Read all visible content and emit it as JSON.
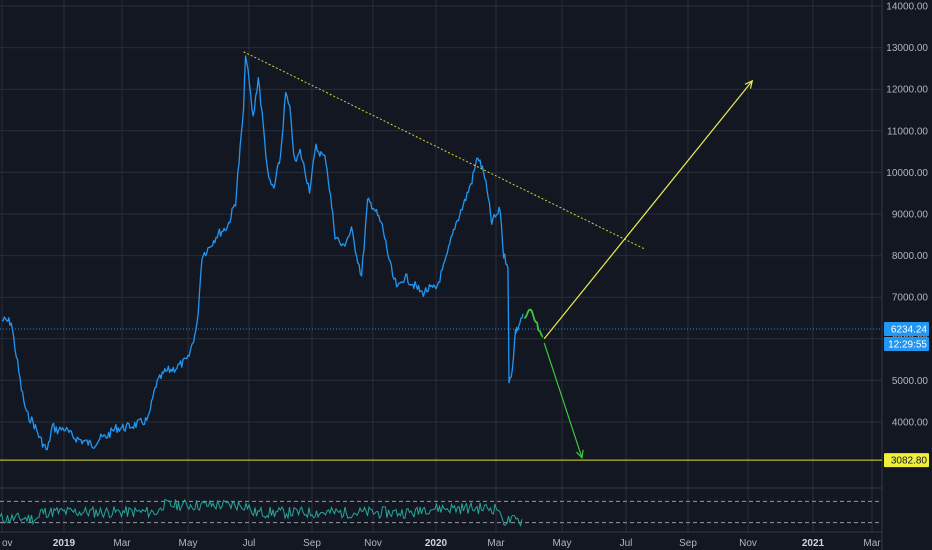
{
  "colors": {
    "background": "#131722",
    "grid": "#2a2e39",
    "price_line": "#2196f3",
    "rsi_line": "#26a69a",
    "trendline": "#d4d435",
    "bull_arrow": "#ecec50",
    "bear_arrow": "#3cc83c",
    "support_line": "#d8e02a",
    "support_label_bg": "#f0f03a",
    "price_label_bg": "#2196f3",
    "axis_text": "#b2b5be"
  },
  "price_label": {
    "value": "6234.24",
    "countdown": "12:29:55"
  },
  "support_label": {
    "value": "3082.80"
  },
  "chart_data": {
    "type": "line",
    "ylim": [
      2700,
      14100
    ],
    "y_ticks": [
      "14000.00",
      "13000.00",
      "12000.00",
      "11000.00",
      "10000.00",
      "9000.00",
      "8000.00",
      "7000.00",
      "6000.00",
      "5000.00",
      "4000.00"
    ],
    "x_ticks": [
      "ov",
      "2019",
      "Mar",
      "May",
      "Jul",
      "Sep",
      "Nov",
      "2020",
      "Mar",
      "May",
      "Jul",
      "Sep",
      "Nov",
      "2021",
      "Mar"
    ],
    "x_ticks_bold": [
      "2019",
      "2020",
      "2021"
    ],
    "current_price": 6234.24,
    "support_level": 3082.8,
    "series": [
      {
        "x": [
          "2018-11-01",
          "2018-11-10",
          "2018-11-15",
          "2018-11-20",
          "2018-11-25",
          "2018-12-01",
          "2018-12-08",
          "2018-12-15",
          "2018-12-20",
          "2018-12-25",
          "2019-01-01",
          "2019-01-10",
          "2019-01-20",
          "2019-02-01",
          "2019-02-08",
          "2019-02-15",
          "2019-02-25",
          "2019-03-05",
          "2019-03-15",
          "2019-03-25",
          "2019-04-02",
          "2019-04-10",
          "2019-04-20",
          "2019-05-01",
          "2019-05-10",
          "2019-05-15",
          "2019-05-22",
          "2019-05-30",
          "2019-06-10",
          "2019-06-18",
          "2019-06-26",
          "2019-06-28",
          "2019-07-05",
          "2019-07-10",
          "2019-07-16",
          "2019-07-20",
          "2019-07-25",
          "2019-08-01",
          "2019-08-06",
          "2019-08-10",
          "2019-08-15",
          "2019-08-20",
          "2019-08-29",
          "2019-09-05",
          "2019-09-15",
          "2019-09-24",
          "2019-10-01",
          "2019-10-10",
          "2019-10-20",
          "2019-10-26",
          "2019-11-01",
          "2019-11-10",
          "2019-11-20",
          "2019-11-25",
          "2019-12-01",
          "2019-12-10",
          "2019-12-18",
          "2019-12-25",
          "2020-01-01",
          "2020-01-10",
          "2020-01-20",
          "2020-01-30",
          "2020-02-07",
          "2020-02-13",
          "2020-02-20",
          "2020-02-27",
          "2020-03-05",
          "2020-03-08",
          "2020-03-10",
          "2020-03-12",
          "2020-03-13",
          "2020-03-16",
          "2020-03-19",
          "2020-03-20",
          "2020-03-23",
          "2020-03-26"
        ],
        "y": [
          6450,
          6400,
          5600,
          4800,
          4200,
          4000,
          3600,
          3300,
          3900,
          3800,
          3850,
          3650,
          3550,
          3450,
          3600,
          3650,
          3850,
          3870,
          3950,
          4050,
          4900,
          5200,
          5300,
          5500,
          6300,
          8000,
          8200,
          8500,
          8700,
          9300,
          11500,
          12900,
          11300,
          12300,
          10800,
          9800,
          9600,
          10400,
          11900,
          11500,
          10200,
          10500,
          9600,
          10600,
          10300,
          8500,
          8200,
          8600,
          7500,
          9300,
          9200,
          8700,
          7500,
          7200,
          7500,
          7300,
          7100,
          7200,
          7200,
          7800,
          8700,
          9300,
          9800,
          10400,
          9900,
          8800,
          9100,
          8000,
          7900,
          7800,
          4900,
          5300,
          6200,
          6200,
          6400,
          6600
        ],
        "color": "#2196f3"
      }
    ]
  },
  "annotations": {
    "trendline": {
      "from": [
        "2019-06-26",
        12900
      ],
      "to": [
        "2020-07-20",
        8150
      ]
    },
    "bull_arrow": {
      "from": [
        "2020-04-15",
        6000
      ],
      "to": [
        "2020-11-05",
        12200
      ]
    },
    "bear_arrow": {
      "from": [
        "2020-04-15",
        5900
      ],
      "to": [
        "2020-05-20",
        3140
      ]
    },
    "green_curve": [
      [
        "2020-03-27",
        6500
      ],
      [
        "2020-04-02",
        6700
      ],
      [
        "2020-04-08",
        6400
      ],
      [
        "2020-04-10",
        6200
      ],
      [
        "2020-04-14",
        6050
      ]
    ],
    "rsi_levels": [
      70,
      30
    ],
    "rsi_range": [
      20,
      80
    ]
  }
}
